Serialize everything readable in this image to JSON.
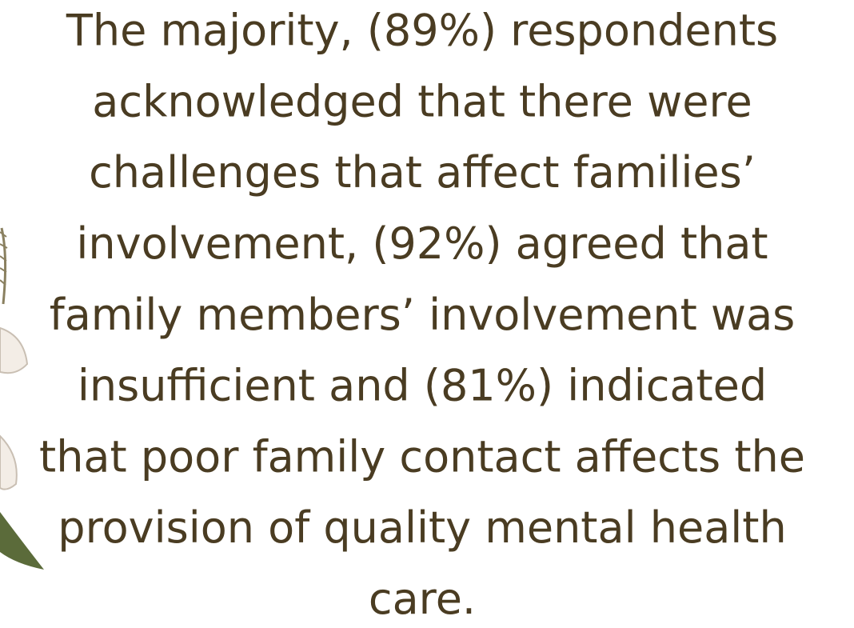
{
  "body": {
    "lines": [
      "The majority, (89%) respondents",
      "acknowledged that there were",
      "challenges that affect families’",
      "involvement, (92%) agreed that",
      "family members’ involvement was",
      "insufficient and (81%) indicated",
      "that poor family contact affects the",
      "provision of quality mental health",
      "care."
    ]
  }
}
